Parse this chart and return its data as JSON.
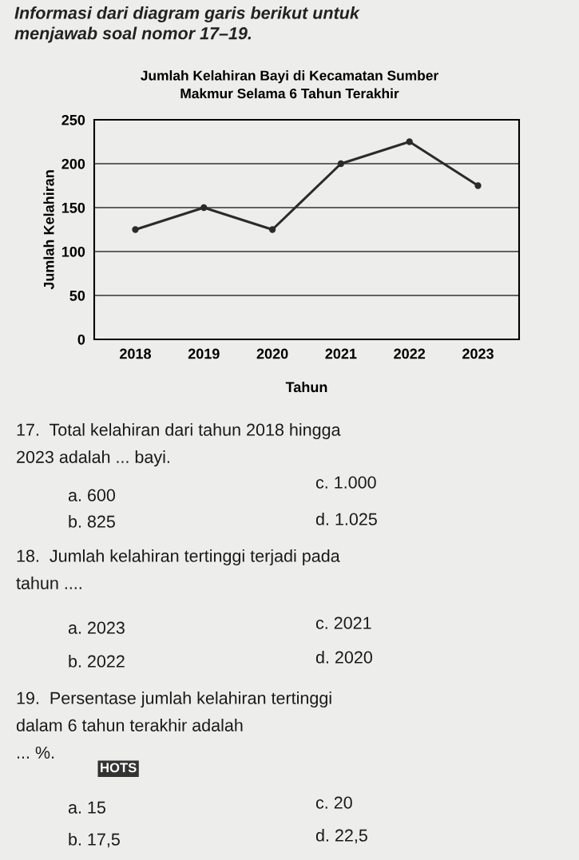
{
  "chart_data": {
    "type": "line",
    "title": "Jumlah Kelahiran Bayi di Kecamatan Sumber\nMakmur Selama 6 Tahun Terakhir",
    "xlabel": "Tahun",
    "ylabel": "Jumlah Kelahiran",
    "categories": [
      "2018",
      "2019",
      "2020",
      "2021",
      "2022",
      "2023"
    ],
    "series": [
      {
        "color": "#2b2b2b",
        "values": [
          125,
          150,
          125,
          200,
          225,
          175
        ]
      }
    ],
    "ylim": [
      0,
      250
    ],
    "yticks": [
      0,
      50,
      100,
      150,
      200,
      250
    ],
    "grid": "y",
    "marker": "circle",
    "line_style": "solid",
    "annotations": [
      "Informasi dari diagram garis berikut untuk\nmenjawab soal nomor 17–19.",
      "17.  Total kelahiran dari tahun 2018 hingga\n2023 adalah ... bayi.",
      "a. 600",
      "c. 1.000",
      "b. 825",
      "d. 1.025",
      "18.  Jumlah kelahiran tertinggi terjadi pada\ntahun ....",
      "a. 2023",
      "c. 2021",
      "b. 2022",
      "d. 2020",
      "19.  Persentase jumlah kelahiran tertinggi\ndalam 6 tahun terakhir adalah\n... %.",
      "HOTS",
      "a. 15",
      "c. 20",
      "b. 17,5",
      "d. 22,5"
    ]
  }
}
